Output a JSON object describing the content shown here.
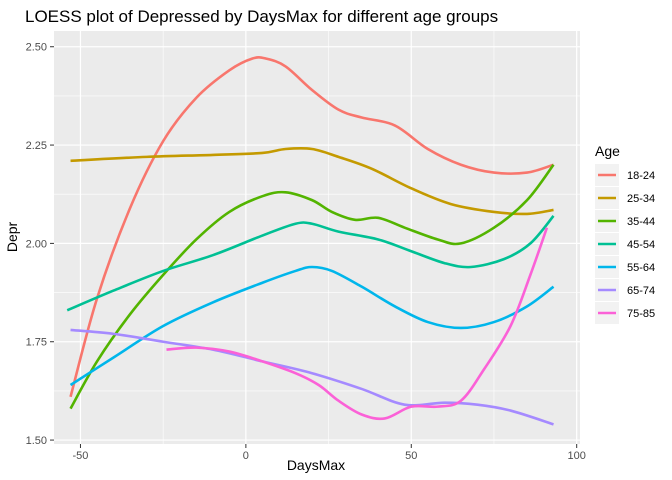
{
  "chart_data": {
    "type": "line",
    "title": "LOESS plot of Depressed by DaysMax for different age groups",
    "xlabel": "DaysMax",
    "ylabel": "Depr",
    "xlim": [
      -58,
      101
    ],
    "ylim": [
      1.49,
      2.54
    ],
    "x_ticks": [
      -50,
      0,
      50,
      100
    ],
    "y_ticks": [
      1.5,
      1.75,
      2.0,
      2.25,
      2.5
    ],
    "x_tick_labels": [
      "-50",
      "0",
      "50",
      "100"
    ],
    "y_tick_labels": [
      "1.50",
      "1.75",
      "2.00",
      "2.25",
      "2.50"
    ],
    "grid": true,
    "legend": {
      "title": "Age",
      "placement": "right"
    },
    "series": [
      {
        "name": "18-24",
        "color": "#F8766D",
        "points": [
          [
            -53,
            1.61
          ],
          [
            -45,
            1.86
          ],
          [
            -35,
            2.09
          ],
          [
            -25,
            2.26
          ],
          [
            -15,
            2.37
          ],
          [
            -5,
            2.44
          ],
          [
            2,
            2.47
          ],
          [
            6,
            2.47
          ],
          [
            12,
            2.45
          ],
          [
            20,
            2.39
          ],
          [
            28,
            2.34
          ],
          [
            35,
            2.32
          ],
          [
            45,
            2.3
          ],
          [
            55,
            2.24
          ],
          [
            65,
            2.2
          ],
          [
            75,
            2.18
          ],
          [
            85,
            2.18
          ],
          [
            93,
            2.2
          ]
        ]
      },
      {
        "name": "25-34",
        "color": "#C49A00",
        "points": [
          [
            -53,
            2.21
          ],
          [
            -30,
            2.22
          ],
          [
            -10,
            2.225
          ],
          [
            5,
            2.23
          ],
          [
            12,
            2.24
          ],
          [
            20,
            2.24
          ],
          [
            28,
            2.22
          ],
          [
            38,
            2.19
          ],
          [
            50,
            2.14
          ],
          [
            62,
            2.1
          ],
          [
            75,
            2.08
          ],
          [
            85,
            2.075
          ],
          [
            93,
            2.085
          ]
        ]
      },
      {
        "name": "35-44",
        "color": "#53B400",
        "points": [
          [
            -53,
            1.58
          ],
          [
            -45,
            1.7
          ],
          [
            -35,
            1.82
          ],
          [
            -25,
            1.92
          ],
          [
            -15,
            2.01
          ],
          [
            -5,
            2.08
          ],
          [
            5,
            2.12
          ],
          [
            12,
            2.13
          ],
          [
            20,
            2.11
          ],
          [
            26,
            2.08
          ],
          [
            33,
            2.06
          ],
          [
            40,
            2.065
          ],
          [
            48,
            2.04
          ],
          [
            58,
            2.01
          ],
          [
            65,
            2.0
          ],
          [
            75,
            2.04
          ],
          [
            85,
            2.11
          ],
          [
            93,
            2.2
          ]
        ]
      },
      {
        "name": "45-54",
        "color": "#00C094",
        "points": [
          [
            -54,
            1.83
          ],
          [
            -40,
            1.88
          ],
          [
            -25,
            1.93
          ],
          [
            -10,
            1.97
          ],
          [
            5,
            2.02
          ],
          [
            15,
            2.05
          ],
          [
            20,
            2.05
          ],
          [
            28,
            2.03
          ],
          [
            40,
            2.01
          ],
          [
            50,
            1.98
          ],
          [
            60,
            1.95
          ],
          [
            68,
            1.94
          ],
          [
            78,
            1.96
          ],
          [
            86,
            2.0
          ],
          [
            93,
            2.07
          ]
        ]
      },
      {
        "name": "55-64",
        "color": "#00B6EB",
        "points": [
          [
            -53,
            1.64
          ],
          [
            -40,
            1.71
          ],
          [
            -25,
            1.79
          ],
          [
            -10,
            1.85
          ],
          [
            5,
            1.9
          ],
          [
            15,
            1.93
          ],
          [
            20,
            1.94
          ],
          [
            26,
            1.93
          ],
          [
            35,
            1.89
          ],
          [
            45,
            1.84
          ],
          [
            55,
            1.8
          ],
          [
            65,
            1.785
          ],
          [
            75,
            1.8
          ],
          [
            85,
            1.84
          ],
          [
            93,
            1.89
          ]
        ]
      },
      {
        "name": "65-74",
        "color": "#A58AFF",
        "points": [
          [
            -53,
            1.78
          ],
          [
            -40,
            1.77
          ],
          [
            -25,
            1.75
          ],
          [
            -10,
            1.73
          ],
          [
            5,
            1.7
          ],
          [
            20,
            1.67
          ],
          [
            35,
            1.63
          ],
          [
            48,
            1.59
          ],
          [
            60,
            1.595
          ],
          [
            70,
            1.59
          ],
          [
            80,
            1.575
          ],
          [
            93,
            1.54
          ]
        ]
      },
      {
        "name": "75-85",
        "color": "#FB61D7",
        "points": [
          [
            -24,
            1.73
          ],
          [
            -15,
            1.735
          ],
          [
            -5,
            1.725
          ],
          [
            5,
            1.7
          ],
          [
            15,
            1.67
          ],
          [
            22,
            1.64
          ],
          [
            28,
            1.6
          ],
          [
            35,
            1.565
          ],
          [
            42,
            1.555
          ],
          [
            50,
            1.585
          ],
          [
            58,
            1.585
          ],
          [
            65,
            1.6
          ],
          [
            72,
            1.68
          ],
          [
            80,
            1.79
          ],
          [
            86,
            1.92
          ],
          [
            91,
            2.04
          ]
        ]
      }
    ]
  }
}
